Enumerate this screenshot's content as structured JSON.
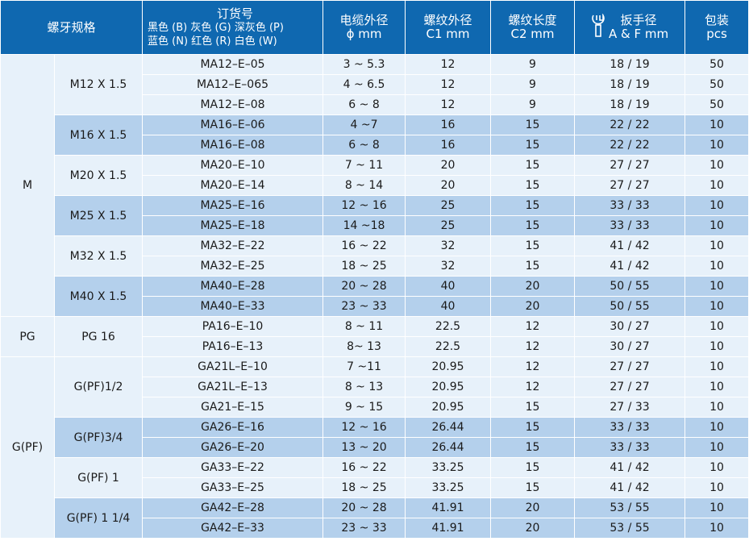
{
  "header": {
    "thread_spec": "螺牙规格",
    "order_no_title": "订货号",
    "order_colors_line1": "黑色 (B)  灰色 (G)  深灰色 (P)",
    "order_colors_line2": "蓝色 (N)  红色 (R)  白色 (W)",
    "cable_od_title": "电缆外径",
    "cable_od_unit": "ϕ mm",
    "thread_od_title": "螺纹外径",
    "thread_od_unit": "C1   mm",
    "thread_len_title": "螺纹长度",
    "thread_len_unit": "C2   mm",
    "wrench_title": "扳手径",
    "wrench_unit": "A & F  mm",
    "pack_title": "包装",
    "pack_unit": "pcs",
    "wrench_icon": "wrench-icon"
  },
  "groups": [
    {
      "label": "M",
      "subgroups": [
        {
          "label": "M12 X 1.5",
          "rows": [
            [
              "MA12–E–05",
              "3 ~ 5.3",
              "12",
              "9",
              "18 / 19",
              "50"
            ],
            [
              "MA12–E–065",
              "4 ~ 6.5",
              "12",
              "9",
              "18 / 19",
              "50"
            ],
            [
              "MA12–E–08",
              "6 ~ 8",
              "12",
              "9",
              "18 / 19",
              "50"
            ]
          ]
        },
        {
          "label": "M16 X 1.5",
          "rows": [
            [
              "MA16–E–06",
              "4 ~7",
              "16",
              "15",
              "22 / 22",
              "10"
            ],
            [
              "MA16–E–08",
              "6 ~ 8",
              "16",
              "15",
              "22 / 22",
              "10"
            ]
          ]
        },
        {
          "label": "M20 X 1.5",
          "rows": [
            [
              "MA20–E–10",
              "7 ~ 11",
              "20",
              "15",
              "27 / 27",
              "10"
            ],
            [
              "MA20–E–14",
              "8 ~ 14",
              "20",
              "15",
              "27 / 27",
              "10"
            ]
          ]
        },
        {
          "label": "M25 X 1.5",
          "rows": [
            [
              "MA25–E–16",
              "12 ~ 16",
              "25",
              "15",
              "33 / 33",
              "10"
            ],
            [
              "MA25–E–18",
              "14 ~18",
              "25",
              "15",
              "33 / 33",
              "10"
            ]
          ]
        },
        {
          "label": "M32 X 1.5",
          "rows": [
            [
              "MA32–E–22",
              "16 ~ 22",
              "32",
              "15",
              "41 / 42",
              "10"
            ],
            [
              "MA32–E–25",
              "18 ~ 25",
              "32",
              "15",
              "41 / 42",
              "10"
            ]
          ]
        },
        {
          "label": "M40 X 1.5",
          "rows": [
            [
              "MA40–E–28",
              "20 ~ 28",
              "40",
              "20",
              "50 / 55",
              "10"
            ],
            [
              "MA40–E–33",
              "23 ~ 33",
              "40",
              "20",
              "50 / 55",
              "10"
            ]
          ]
        }
      ]
    },
    {
      "label": "PG",
      "subgroups": [
        {
          "label": "PG 16",
          "rows": [
            [
              "PA16–E–10",
              "8 ~ 11",
              "22.5",
              "12",
              "30 / 27",
              "10"
            ],
            [
              "PA16–E–13",
              "8~ 13",
              "22.5",
              "12",
              "30 / 27",
              "10"
            ]
          ]
        }
      ]
    },
    {
      "label": "G(PF)",
      "subgroups": [
        {
          "label": "G(PF)1/2",
          "rows": [
            [
              "GA21L–E–10",
              "7 ~11",
              "20.95",
              "12",
              "27 / 27",
              "10"
            ],
            [
              "GA21L–E–13",
              "8 ~ 13",
              "20.95",
              "12",
              "27 / 27",
              "10"
            ],
            [
              "GA21–E–15",
              "9 ~ 15",
              "20.95",
              "15",
              "27 / 33",
              "10"
            ]
          ]
        },
        {
          "label": "G(PF)3/4",
          "rows": [
            [
              "GA26–E–16",
              "12 ~ 16",
              "26.44",
              "15",
              "33 / 33",
              "10"
            ],
            [
              "GA26–E–20",
              "13 ~ 20",
              "26.44",
              "15",
              "33 / 33",
              "10"
            ]
          ]
        },
        {
          "label": "G(PF) 1",
          "rows": [
            [
              "GA33–E–22",
              "16 ~ 22",
              "33.25",
              "15",
              "41 / 42",
              "10"
            ],
            [
              "GA33–E–25",
              "18 ~ 25",
              "33.25",
              "15",
              "41 / 42",
              "10"
            ]
          ]
        },
        {
          "label": "G(PF) 1 1/4",
          "rows": [
            [
              "GA42–E–28",
              "20 ~ 28",
              "41.91",
              "20",
              "53 / 55",
              "10"
            ],
            [
              "GA42–E–33",
              "23 ~ 33",
              "41.91",
              "20",
              "53 / 55",
              "10"
            ]
          ]
        }
      ]
    }
  ]
}
